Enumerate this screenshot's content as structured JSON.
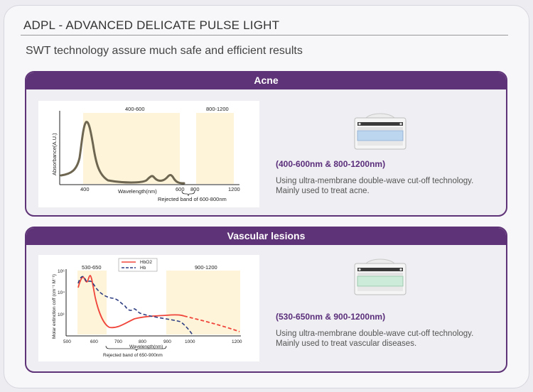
{
  "header": {
    "title": "ADPL - ADVANCED DELICATE PULSE LIGHT",
    "subtitle": "SWT technology assure much safe and efficient results"
  },
  "panels": [
    {
      "title": "Acne",
      "range": "(400-600nm & 800-1200nm)",
      "desc1": "Using ultra-membrane double-wave cut-off technology.",
      "desc2": "Mainly used to treat acne.",
      "device_icon": "ipl-handpiece-blue-filter-icon",
      "filter_color": "#bcd6f0",
      "chart": {
        "band1_label": "400-600",
        "band2_label": "800-1200",
        "ylabel": "Absorbance(A.U.)",
        "xlabel": "Wavelength(nm)",
        "ticks": [
          "400",
          "600",
          "800",
          "1200"
        ],
        "rejected_label": "Rejected band of 600-800nm"
      }
    },
    {
      "title": "Vascular lesions",
      "range": "(530-650nm & 900-1200nm)",
      "desc1": "Using ultra-membrane double-wave cut-off technology.",
      "desc2": "Mainly used to treat vascular diseases.",
      "device_icon": "ipl-handpiece-green-filter-icon",
      "filter_color": "#cdebd9",
      "chart": {
        "band1_label": "530-650",
        "band2_label": "900-1200",
        "legend1": "HbO2",
        "legend2": "Hb",
        "ylabel": "Molar extinction coff (cm⁻¹ M⁻¹)",
        "xlabel": "Wavelength(nm)",
        "yticks": [
          "10⁶",
          "10⁴",
          "10³"
        ],
        "ticks": [
          "500",
          "600",
          "700",
          "800",
          "900",
          "1000",
          "1200"
        ],
        "rejected_label": "Rejected band of 650-900nm"
      }
    }
  ],
  "colors": {
    "purple": "#5f3377",
    "band": "#fdf4da",
    "acne_curve": "#6e6650",
    "hbo2": "#f0453a",
    "hb": "#2e3d82"
  }
}
